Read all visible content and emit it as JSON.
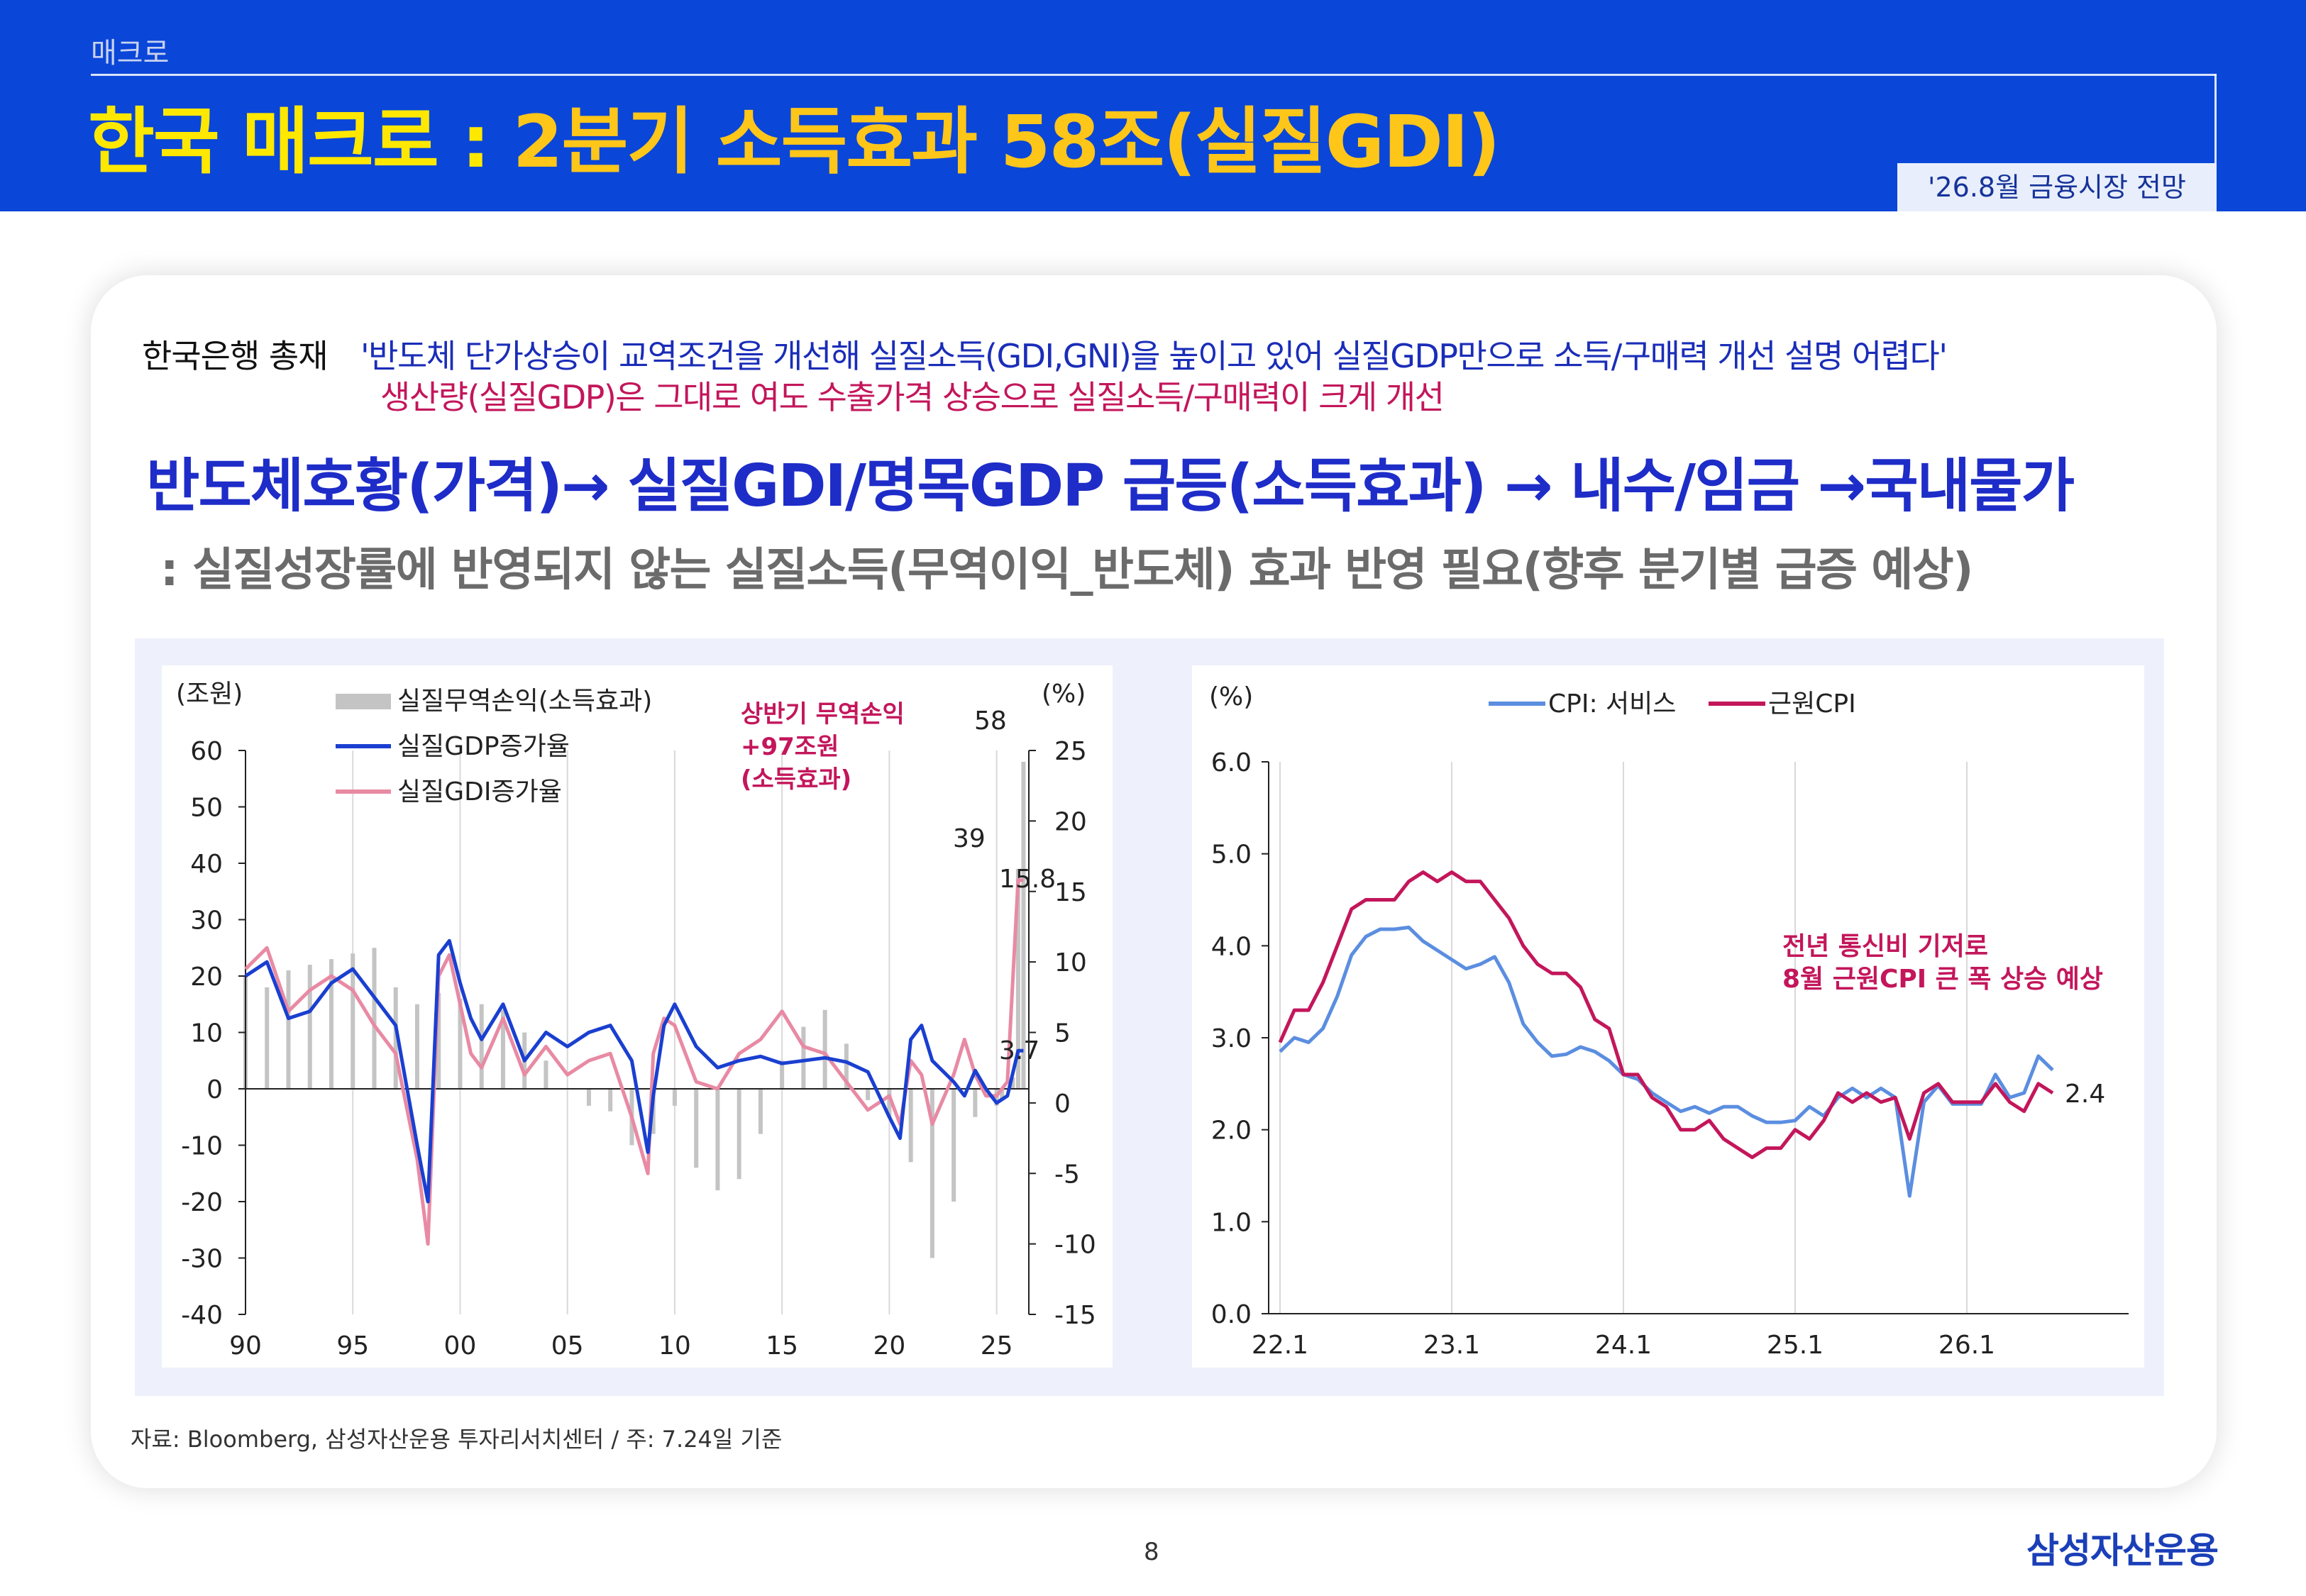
{
  "header": {
    "section": "매크로",
    "title_part1": "한국 매크로 : ",
    "title_part2": "2분기 소득효과 58조(실질GDI)",
    "date_badge": "'26.8월 금융시장 전망"
  },
  "quote": {
    "speaker": "한국은행 총재",
    "line1": "'반도체 단가상승이 교역조건을 개선해 실질소득(GDI,GNI)을 높이고 있어 실질GDP만으로 소득/구매력 개선 설명 어렵다'",
    "line2": "생산량(실질GDP)은 그대로 여도 수출가격 상승으로 실질소득/구매력이 크게 개선"
  },
  "headline": "반도체호황(가격)→ 실질GDI/명목GDP 급등(소득효과) → 내수/임금 →국내물가",
  "subline": ": 실질성장률에 반영되지 않는 실질소득(무역이익_반도체) 효과 반영 필요(향후 분기별 급증 예상)",
  "colors": {
    "header_bg": "#0a46d8",
    "title_yellow": "#ffe800",
    "title_orange": "#ffc61a",
    "accent_blue": "#1e2cc8",
    "accent_red": "#c3165b"
  },
  "chart_data": [
    {
      "type": "bar+line",
      "left_unit": "(조원)",
      "right_unit": "(%)",
      "left_ylim": [
        -40,
        60
      ],
      "left_ticks": [
        "60",
        "50",
        "40",
        "30",
        "20",
        "10",
        "0",
        "-10",
        "-20",
        "-30",
        "-40"
      ],
      "right_ylim": [
        -15,
        25
      ],
      "right_ticks": [
        "25",
        "20",
        "15",
        "10",
        "5",
        "0",
        "-5",
        "-10",
        "-15"
      ],
      "x_ticks": [
        "90",
        "95",
        "00",
        "05",
        "10",
        "15",
        "20",
        "25"
      ],
      "xlim": [
        1990,
        2026.5
      ],
      "grid_x": true,
      "legend_position": "top-left",
      "series": [
        {
          "name": "실질무역손익(소득효과)",
          "kind": "bar",
          "axis": "left",
          "color": "#c4c4c4",
          "x": [
            1990,
            1991,
            1992,
            1993,
            1994,
            1995,
            1996,
            1997,
            1998,
            1999,
            2000,
            2001,
            2002,
            2003,
            2004,
            2005,
            2006,
            2007,
            2008,
            2009,
            2010,
            2011,
            2012,
            2013,
            2014,
            2015,
            2016,
            2017,
            2018,
            2019,
            2020,
            2021,
            2022,
            2023,
            2024,
            2025,
            2025.25,
            2025.5,
            2025.75,
            2026,
            2026.25
          ],
          "values": [
            20,
            18,
            21,
            22,
            23,
            24,
            25,
            18,
            15,
            17,
            16,
            15,
            14,
            10,
            5,
            0,
            -3,
            -4,
            -10,
            -8,
            -3,
            -14,
            -18,
            -16,
            -8,
            5,
            11,
            14,
            8,
            -2,
            -5,
            -13,
            -30,
            -20,
            -5,
            -3,
            -2,
            0,
            2,
            39,
            58
          ]
        },
        {
          "name": "실질GDP증가율",
          "kind": "line",
          "axis": "right",
          "color": "#1a3fd0",
          "x": [
            1990,
            1991,
            1992,
            1993,
            1994,
            1995,
            1996,
            1997,
            1998,
            1998.5,
            1999,
            1999.5,
            2000,
            2000.5,
            2001,
            2002,
            2003,
            2004,
            2005,
            2006,
            2007,
            2008,
            2008.75,
            2009,
            2009.5,
            2010,
            2011,
            2012,
            2013,
            2014,
            2015,
            2016,
            2017,
            2018,
            2019,
            2020,
            2020.5,
            2021,
            2021.5,
            2022,
            2023,
            2023.5,
            2024,
            2024.5,
            2025,
            2025.5,
            2026,
            2026.25
          ],
          "values": [
            9.0,
            10.0,
            6.0,
            6.5,
            8.5,
            9.5,
            7.5,
            5.5,
            -3.0,
            -7.0,
            10.5,
            11.5,
            8.5,
            6.0,
            4.5,
            7.0,
            3.0,
            5.0,
            4.0,
            5.0,
            5.5,
            3.0,
            -3.5,
            0.5,
            5.5,
            7.0,
            4.0,
            2.5,
            3.0,
            3.3,
            2.8,
            3.0,
            3.2,
            2.9,
            2.2,
            -1.0,
            -2.5,
            4.5,
            5.5,
            3.0,
            1.5,
            0.5,
            2.3,
            1.0,
            0.0,
            0.5,
            3.7,
            3.7
          ]
        },
        {
          "name": "실질GDI증가율",
          "kind": "line",
          "axis": "right",
          "color": "#e88aa4",
          "x": [
            1990,
            1991,
            1992,
            1993,
            1994,
            1995,
            1996,
            1997,
            1998,
            1998.5,
            1999,
            1999.5,
            2000,
            2000.5,
            2001,
            2002,
            2003,
            2004,
            2005,
            2006,
            2007,
            2008,
            2008.75,
            2009,
            2009.5,
            2010,
            2011,
            2012,
            2013,
            2014,
            2015,
            2016,
            2017,
            2018,
            2019,
            2020,
            2020.5,
            2021,
            2021.5,
            2022,
            2023,
            2023.5,
            2024,
            2024.5,
            2025,
            2025.5,
            2026,
            2026.25
          ],
          "values": [
            9.5,
            11.0,
            6.5,
            8.0,
            9.0,
            8.0,
            5.5,
            3.5,
            -4.0,
            -10.0,
            9.0,
            10.5,
            7.0,
            3.5,
            2.5,
            6.0,
            2.0,
            4.0,
            2.0,
            3.0,
            3.5,
            -1.0,
            -5.0,
            3.5,
            6.0,
            5.5,
            1.5,
            1.0,
            3.5,
            4.5,
            6.5,
            4.0,
            3.5,
            1.5,
            -0.5,
            0.5,
            -1.5,
            3.0,
            2.0,
            -1.5,
            2.0,
            4.5,
            2.0,
            0.5,
            0.5,
            1.5,
            15.8,
            15.8
          ]
        }
      ],
      "data_labels": [
        "58",
        "39",
        "15.8",
        "3.7"
      ],
      "annotation": [
        "상반기 무역손익",
        "+97조원",
        "(소득효과)"
      ]
    },
    {
      "type": "line",
      "y_unit": "(%)",
      "ylim": [
        0.0,
        6.0
      ],
      "y_ticks": [
        "6.0",
        "5.0",
        "4.0",
        "3.0",
        "2.0",
        "1.0",
        "0.0"
      ],
      "x_ticks": [
        "22.1",
        "23.1",
        "24.1",
        "25.1",
        "26.1"
      ],
      "x_start": "2022-01",
      "grid_x": true,
      "legend_position": "top",
      "series": [
        {
          "name": "CPI: 서비스",
          "color": "#5b8ee0",
          "values": [
            2.85,
            3.0,
            2.95,
            3.1,
            3.45,
            3.9,
            4.1,
            4.18,
            4.18,
            4.2,
            4.05,
            3.95,
            3.85,
            3.75,
            3.8,
            3.88,
            3.6,
            3.15,
            2.95,
            2.8,
            2.82,
            2.9,
            2.85,
            2.75,
            2.6,
            2.55,
            2.4,
            2.3,
            2.2,
            2.25,
            2.18,
            2.25,
            2.25,
            2.15,
            2.08,
            2.08,
            2.1,
            2.25,
            2.15,
            2.35,
            2.45,
            2.35,
            2.45,
            2.35,
            1.28,
            2.3,
            2.48,
            2.28,
            2.28,
            2.28,
            2.6,
            2.35,
            2.4,
            2.8,
            2.65
          ]
        },
        {
          "name": "근원CPI",
          "color": "#c3165b",
          "values": [
            2.95,
            3.3,
            3.3,
            3.6,
            4.0,
            4.4,
            4.5,
            4.5,
            4.5,
            4.7,
            4.8,
            4.7,
            4.8,
            4.7,
            4.7,
            4.5,
            4.3,
            4.0,
            3.8,
            3.7,
            3.7,
            3.55,
            3.2,
            3.1,
            2.6,
            2.6,
            2.35,
            2.25,
            2.0,
            2.0,
            2.1,
            1.9,
            1.8,
            1.7,
            1.8,
            1.8,
            2.0,
            1.9,
            2.1,
            2.4,
            2.3,
            2.4,
            2.3,
            2.35,
            1.9,
            2.4,
            2.5,
            2.3,
            2.3,
            2.3,
            2.5,
            2.3,
            2.2,
            2.5,
            2.4
          ]
        }
      ],
      "data_labels": [
        "2.4"
      ],
      "annotation": [
        "전년 통신비 기저로",
        "8월 근원CPI 큰 폭 상승 예상"
      ]
    }
  ],
  "source": "자료: Bloomberg, 삼성자산운용 투자리서치센터 / 주: 7.24일 기준",
  "page_number": "8",
  "logo": "삼성자산운용"
}
